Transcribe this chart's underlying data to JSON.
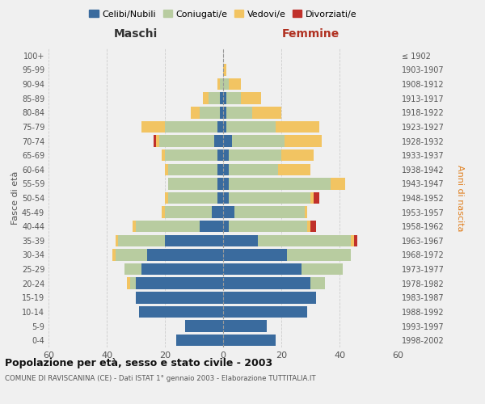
{
  "age_groups": [
    "0-4",
    "5-9",
    "10-14",
    "15-19",
    "20-24",
    "25-29",
    "30-34",
    "35-39",
    "40-44",
    "45-49",
    "50-54",
    "55-59",
    "60-64",
    "65-69",
    "70-74",
    "75-79",
    "80-84",
    "85-89",
    "90-94",
    "95-99",
    "100+"
  ],
  "birth_years": [
    "1998-2002",
    "1993-1997",
    "1988-1992",
    "1983-1987",
    "1978-1982",
    "1973-1977",
    "1968-1972",
    "1963-1967",
    "1958-1962",
    "1953-1957",
    "1948-1952",
    "1943-1947",
    "1938-1942",
    "1933-1937",
    "1928-1932",
    "1923-1927",
    "1918-1922",
    "1913-1917",
    "1908-1912",
    "1903-1907",
    "≤ 1902"
  ],
  "males": {
    "celibi": [
      16,
      13,
      29,
      30,
      30,
      28,
      26,
      20,
      8,
      4,
      2,
      2,
      2,
      2,
      3,
      2,
      1,
      1,
      0,
      0,
      0
    ],
    "coniugati": [
      0,
      0,
      0,
      0,
      2,
      6,
      11,
      16,
      22,
      16,
      17,
      17,
      17,
      18,
      19,
      18,
      7,
      4,
      1,
      0,
      0
    ],
    "vedovi": [
      0,
      0,
      0,
      0,
      1,
      0,
      1,
      1,
      1,
      1,
      1,
      0,
      1,
      1,
      1,
      8,
      3,
      2,
      1,
      0,
      0
    ],
    "divorziati": [
      0,
      0,
      0,
      0,
      0,
      0,
      0,
      0,
      0,
      0,
      0,
      0,
      0,
      0,
      1,
      0,
      0,
      0,
      0,
      0,
      0
    ]
  },
  "females": {
    "nubili": [
      18,
      15,
      29,
      32,
      30,
      27,
      22,
      12,
      2,
      4,
      2,
      2,
      2,
      2,
      3,
      1,
      1,
      1,
      0,
      0,
      0
    ],
    "coniugate": [
      0,
      0,
      0,
      0,
      5,
      14,
      22,
      32,
      27,
      24,
      28,
      35,
      17,
      18,
      18,
      17,
      9,
      5,
      2,
      0,
      0
    ],
    "vedove": [
      0,
      0,
      0,
      0,
      0,
      0,
      0,
      1,
      1,
      1,
      1,
      5,
      11,
      11,
      13,
      15,
      10,
      7,
      4,
      1,
      0
    ],
    "divorziate": [
      0,
      0,
      0,
      0,
      0,
      0,
      0,
      1,
      2,
      0,
      2,
      0,
      0,
      0,
      0,
      0,
      0,
      0,
      0,
      0,
      0
    ]
  },
  "colors": {
    "celibi": "#3a6b9e",
    "coniugati": "#b8cca0",
    "vedovi": "#f2c462",
    "divorziati": "#c0302a"
  },
  "legend_labels": [
    "Celibi/Nubili",
    "Coniugati/e",
    "Vedovi/e",
    "Divorziati/e"
  ],
  "title": "Popolazione per età, sesso e stato civile - 2003",
  "subtitle": "COMUNE DI RAVISCANINA (CE) - Dati ISTAT 1° gennaio 2003 - Elaborazione TUTTITALIA.IT",
  "xlabel_left": "Maschi",
  "xlabel_right": "Femmine",
  "ylabel_left": "Fasce di età",
  "ylabel_right": "Anni di nascita",
  "xlim": 60,
  "background_color": "#f0f0f0"
}
